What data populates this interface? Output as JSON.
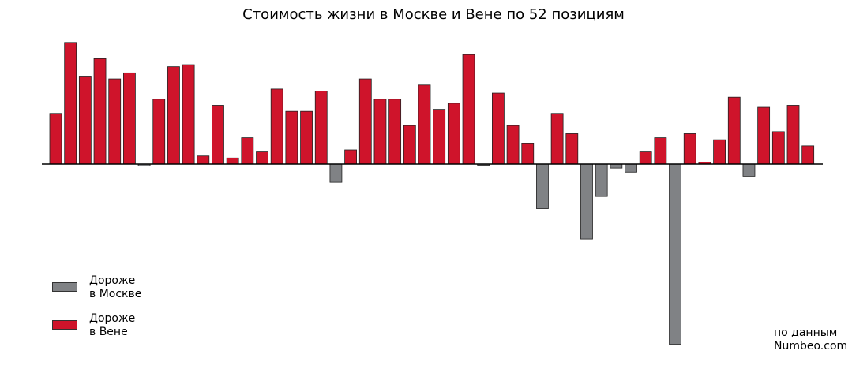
{
  "chart_data": {
    "type": "bar",
    "title": "Стоимость жизни в Москве и Вене по 52 позициям",
    "xlabel": "",
    "ylabel": "",
    "axis": "no tick labels, zero baseline only",
    "grid": false,
    "legend_position": "bottom-left",
    "values": [
      25,
      60,
      43,
      52,
      42,
      45,
      -1,
      32,
      48,
      49,
      4,
      29,
      3,
      13,
      6,
      37,
      26,
      26,
      36,
      -9,
      7,
      42,
      32,
      32,
      19,
      39,
      27,
      30,
      54,
      -0.5,
      35,
      19,
      10,
      -22,
      25,
      15,
      -37,
      -16,
      -2,
      -4,
      6,
      13,
      -89,
      15,
      1,
      12,
      33,
      -6,
      28,
      16,
      29,
      9
    ],
    "series": [
      {
        "name": "Дороже в Москве",
        "color": "#808285",
        "condition": "value < 0"
      },
      {
        "name": "Дороже в Вене",
        "color": "#cf142b",
        "condition": "value > 0"
      }
    ]
  },
  "legend": {
    "items": [
      {
        "line1": "Дороже",
        "line2": "в Москве",
        "color": "#808285"
      },
      {
        "line1": "Дороже",
        "line2": "в Вене",
        "color": "#cf142b"
      }
    ]
  },
  "source": {
    "line1": "по данным",
    "line2": "Numbeo.com"
  }
}
